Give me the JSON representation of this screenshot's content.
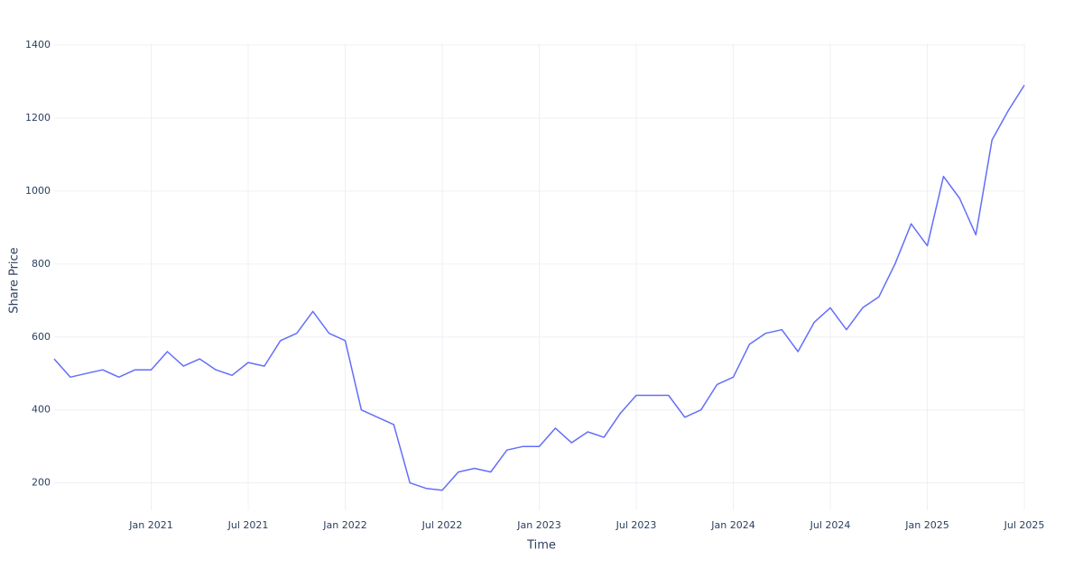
{
  "chart_data": {
    "type": "line",
    "x_label": "Time",
    "y_label": "Share Price",
    "x": [
      "2020-07",
      "2020-08",
      "2020-09",
      "2020-10",
      "2020-11",
      "2020-12",
      "2021-01",
      "2021-02",
      "2021-03",
      "2021-04",
      "2021-05",
      "2021-06",
      "2021-07",
      "2021-08",
      "2021-09",
      "2021-10",
      "2021-11",
      "2021-12",
      "2022-01",
      "2022-02",
      "2022-03",
      "2022-04",
      "2022-05",
      "2022-06",
      "2022-07",
      "2022-08",
      "2022-09",
      "2022-10",
      "2022-11",
      "2022-12",
      "2023-01",
      "2023-02",
      "2023-03",
      "2023-04",
      "2023-05",
      "2023-06",
      "2023-07",
      "2023-08",
      "2023-09",
      "2023-10",
      "2023-11",
      "2023-12",
      "2024-01",
      "2024-02",
      "2024-03",
      "2024-04",
      "2024-05",
      "2024-06",
      "2024-07",
      "2024-08",
      "2024-09",
      "2024-10",
      "2024-11",
      "2024-12",
      "2025-01",
      "2025-02",
      "2025-03",
      "2025-04",
      "2025-05",
      "2025-06",
      "2025-07"
    ],
    "series": [
      {
        "name": "Share Price",
        "color": "#636efa",
        "values": [
          540,
          490,
          500,
          510,
          490,
          510,
          510,
          560,
          520,
          540,
          510,
          495,
          530,
          520,
          590,
          610,
          670,
          610,
          590,
          400,
          380,
          360,
          200,
          185,
          180,
          230,
          240,
          230,
          290,
          300,
          300,
          350,
          310,
          340,
          325,
          390,
          440,
          440,
          440,
          380,
          400,
          470,
          490,
          580,
          610,
          620,
          560,
          640,
          680,
          620,
          680,
          710,
          800,
          910,
          850,
          1040,
          980,
          880,
          1140,
          1220,
          1290
        ]
      }
    ],
    "xlim": [
      "2020-07",
      "2025-07"
    ],
    "xticks": [
      {
        "value": "2021-01",
        "label": "Jan 2021"
      },
      {
        "value": "2021-07",
        "label": "Jul 2021"
      },
      {
        "value": "2022-01",
        "label": "Jan 2022"
      },
      {
        "value": "2022-07",
        "label": "Jul 2022"
      },
      {
        "value": "2023-01",
        "label": "Jan 2023"
      },
      {
        "value": "2023-07",
        "label": "Jul 2023"
      },
      {
        "value": "2024-01",
        "label": "Jan 2024"
      },
      {
        "value": "2024-07",
        "label": "Jul 2024"
      },
      {
        "value": "2025-01",
        "label": "Jan 2025"
      },
      {
        "value": "2025-07",
        "label": "Jul 2025"
      }
    ],
    "ylim": [
      125,
      1405
    ],
    "yticks": [
      200,
      400,
      600,
      800,
      1000,
      1200,
      1400
    ],
    "grid": true
  }
}
